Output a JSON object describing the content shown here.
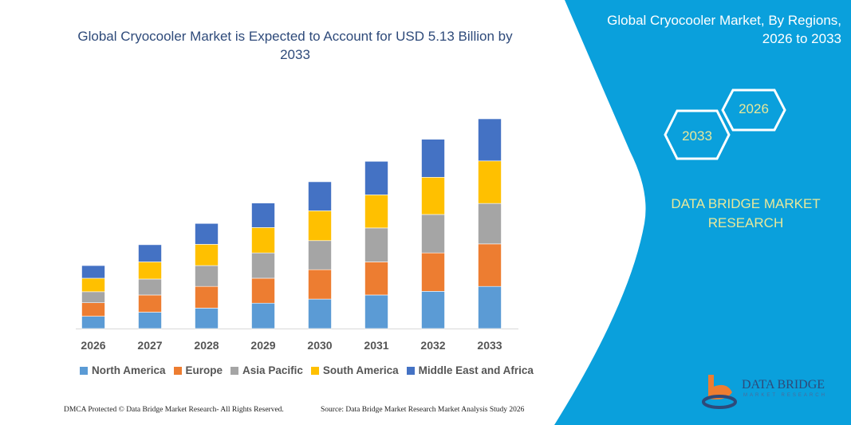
{
  "header": {
    "title": "Global Cryocooler Market is Expected to Account for USD 5.13 Billion by 2033"
  },
  "side_panel": {
    "title": "Global Cryocooler Market, By Regions, 2026 to 2033",
    "hex_start": "2026",
    "hex_end": "2033",
    "brand": "DATA BRIDGE MARKET RESEARCH",
    "logo_text": "DATA BRIDGE",
    "logo_sub": "MARKET RESEARCH",
    "panel_color": "#0aa0dc"
  },
  "footer": {
    "left": "DMCA Protected © Data Bridge Market Research-  All Rights Reserved.",
    "right": "Source: Data Bridge Market Research  Market Analysis Study 2026"
  },
  "chart_data": {
    "type": "bar",
    "stacked": true,
    "title": "Global Cryocooler Market is Expected to Account for USD 5.13 Billion by 2033",
    "xlabel": "",
    "ylabel": "",
    "ylim": [
      0,
      5.13
    ],
    "grid": false,
    "y_axis_visible": false,
    "legend_position": "bottom",
    "categories": [
      "2026",
      "2027",
      "2028",
      "2029",
      "2030",
      "2031",
      "2032",
      "2033"
    ],
    "series": [
      {
        "name": "North America",
        "color": "#5b9bd5",
        "values": [
          0.3,
          0.4,
          0.5,
          0.62,
          0.72,
          0.82,
          0.91,
          1.03
        ]
      },
      {
        "name": "Europe",
        "color": "#ed7d31",
        "values": [
          0.33,
          0.42,
          0.53,
          0.61,
          0.72,
          0.81,
          0.94,
          1.04
        ]
      },
      {
        "name": "Asia Pacific",
        "color": "#a5a5a5",
        "values": [
          0.27,
          0.39,
          0.51,
          0.62,
          0.71,
          0.83,
          0.94,
          0.99
        ]
      },
      {
        "name": "South America",
        "color": "#ffc000",
        "values": [
          0.33,
          0.42,
          0.52,
          0.62,
          0.73,
          0.81,
          0.91,
          1.04
        ]
      },
      {
        "name": "Middle East and Africa",
        "color": "#4472c4",
        "values": [
          0.31,
          0.42,
          0.51,
          0.6,
          0.71,
          0.82,
          0.93,
          1.03
        ]
      }
    ]
  }
}
